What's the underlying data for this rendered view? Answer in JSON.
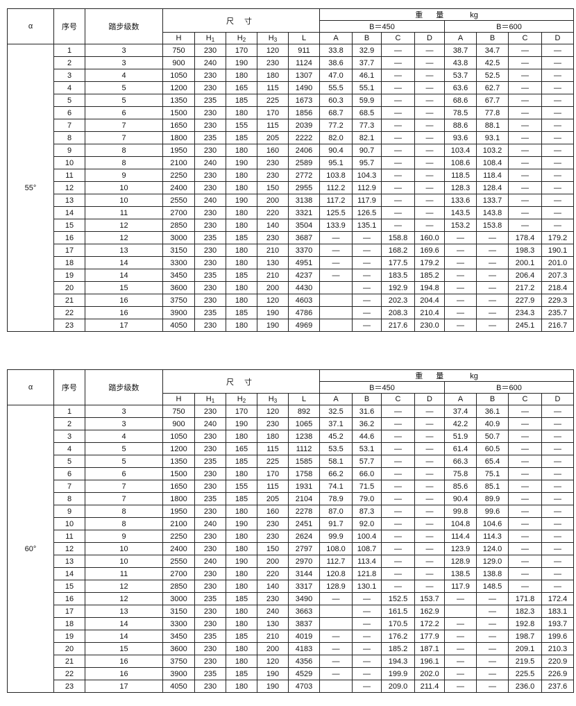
{
  "headers": {
    "alpha": "α",
    "no": "序号",
    "steps": "踏步级数",
    "dimensions": "尺 寸",
    "weight": "重 量",
    "weight_unit": "kg",
    "dim_cols": [
      {
        "base": "H",
        "sub": ""
      },
      {
        "base": "H",
        "sub": "1"
      },
      {
        "base": "H",
        "sub": "2"
      },
      {
        "base": "H",
        "sub": "3"
      },
      {
        "base": "L",
        "sub": ""
      }
    ],
    "group_450": "B＝450",
    "group_600": "B＝600",
    "type_cols": [
      "A",
      "B",
      "C",
      "D"
    ]
  },
  "tables": [
    {
      "angle": "55°",
      "rows": [
        [
          "1",
          "3",
          "750",
          "230",
          "170",
          "120",
          "911",
          "33.8",
          "32.9",
          "—",
          "—",
          "38.7",
          "34.7",
          "—",
          "—"
        ],
        [
          "2",
          "3",
          "900",
          "240",
          "190",
          "230",
          "1124",
          "38.6",
          "37.7",
          "—",
          "—",
          "43.8",
          "42.5",
          "—",
          "—"
        ],
        [
          "3",
          "4",
          "1050",
          "230",
          "180",
          "180",
          "1307",
          "47.0",
          "46.1",
          "—",
          "—",
          "53.7",
          "52.5",
          "—",
          "—"
        ],
        [
          "4",
          "5",
          "1200",
          "230",
          "165",
          "115",
          "1490",
          "55.5",
          "55.1",
          "—",
          "—",
          "63.6",
          "62.7",
          "—",
          "—"
        ],
        [
          "5",
          "5",
          "1350",
          "235",
          "185",
          "225",
          "1673",
          "60.3",
          "59.9",
          "—",
          "—",
          "68.6",
          "67.7",
          "—",
          "—"
        ],
        [
          "6",
          "6",
          "1500",
          "230",
          "180",
          "170",
          "1856",
          "68.7",
          "68.5",
          "—",
          "—",
          "78.5",
          "77.8",
          "—",
          "—"
        ],
        [
          "7",
          "7",
          "1650",
          "230",
          "155",
          "115",
          "2039",
          "77.2",
          "77.3",
          "—",
          "—",
          "88.6",
          "88.1",
          "—",
          "—"
        ],
        [
          "8",
          "7",
          "1800",
          "235",
          "185",
          "205",
          "2222",
          "82.0",
          "82.1",
          "—",
          "—",
          "93.6",
          "93.1",
          "—",
          "—"
        ],
        [
          "9",
          "8",
          "1950",
          "230",
          "180",
          "160",
          "2406",
          "90.4",
          "90.7",
          "—",
          "—",
          "103.4",
          "103.2",
          "—",
          "—"
        ],
        [
          "10",
          "8",
          "2100",
          "240",
          "190",
          "230",
          "2589",
          "95.1",
          "95.7",
          "—",
          "—",
          "108.6",
          "108.4",
          "—",
          "—"
        ],
        [
          "11",
          "9",
          "2250",
          "230",
          "180",
          "230",
          "2772",
          "103.8",
          "104.3",
          "—",
          "—",
          "118.5",
          "118.4",
          "—",
          "—"
        ],
        [
          "12",
          "10",
          "2400",
          "230",
          "180",
          "150",
          "2955",
          "112.2",
          "112.9",
          "—",
          "—",
          "128.3",
          "128.4",
          "—",
          "—"
        ],
        [
          "13",
          "10",
          "2550",
          "240",
          "190",
          "200",
          "3138",
          "117.2",
          "117.9",
          "—",
          "—",
          "133.6",
          "133.7",
          "—",
          "—"
        ],
        [
          "14",
          "11",
          "2700",
          "230",
          "180",
          "220",
          "3321",
          "125.5",
          "126.5",
          "—",
          "—",
          "143.5",
          "143.8",
          "—",
          "—"
        ],
        [
          "15",
          "12",
          "2850",
          "230",
          "180",
          "140",
          "3504",
          "133.9",
          "135.1",
          "—",
          "—",
          "153.2",
          "153.8",
          "—",
          "—"
        ],
        [
          "16",
          "12",
          "3000",
          "235",
          "185",
          "230",
          "3687",
          "—",
          "—",
          "158.8",
          "160.0",
          "—",
          "—",
          "178.4",
          "179.2"
        ],
        [
          "17",
          "13",
          "3150",
          "230",
          "180",
          "210",
          "3370",
          "—",
          "—",
          "168.2",
          "169.6",
          "—",
          "—",
          "198.3",
          "190.1"
        ],
        [
          "18",
          "14",
          "3300",
          "230",
          "180",
          "130",
          "4951",
          "—",
          "—",
          "177.5",
          "179.2",
          "—",
          "—",
          "200.1",
          "201.0"
        ],
        [
          "19",
          "14",
          "3450",
          "235",
          "185",
          "210",
          "4237",
          "—",
          "—",
          "183.5",
          "185.2",
          "—",
          "—",
          "206.4",
          "207.3"
        ],
        [
          "20",
          "15",
          "3600",
          "230",
          "180",
          "200",
          "4430",
          "",
          "—",
          "192.9",
          "194.8",
          "—",
          "—",
          "217.2",
          "218.4"
        ],
        [
          "21",
          "16",
          "3750",
          "230",
          "180",
          "120",
          "4603",
          "",
          "—",
          "202.3",
          "204.4",
          "—",
          "—",
          "227.9",
          "229.3"
        ],
        [
          "22",
          "16",
          "3900",
          "235",
          "185",
          "190",
          "4786",
          "",
          "—",
          "208.3",
          "210.4",
          "—",
          "—",
          "234.3",
          "235.7"
        ],
        [
          "23",
          "17",
          "4050",
          "230",
          "180",
          "190",
          "4969",
          "",
          "—",
          "217.6",
          "230.0",
          "—",
          "—",
          "245.1",
          "216.7"
        ]
      ]
    },
    {
      "angle": "60°",
      "rows": [
        [
          "1",
          "3",
          "750",
          "230",
          "170",
          "120",
          "892",
          "32.5",
          "31.6",
          "—",
          "—",
          "37.4",
          "36.1",
          "—",
          "—"
        ],
        [
          "2",
          "3",
          "900",
          "240",
          "190",
          "230",
          "1065",
          "37.1",
          "36.2",
          "—",
          "—",
          "42.2",
          "40.9",
          "—",
          "—"
        ],
        [
          "3",
          "4",
          "1050",
          "230",
          "180",
          "180",
          "1238",
          "45.2",
          "44.6",
          "—",
          "—",
          "51.9",
          "50.7",
          "—",
          "—"
        ],
        [
          "4",
          "5",
          "1200",
          "230",
          "165",
          "115",
          "1112",
          "53.5",
          "53.1",
          "—",
          "—",
          "61.4",
          "60.5",
          "—",
          "—"
        ],
        [
          "5",
          "5",
          "1350",
          "235",
          "185",
          "225",
          "1585",
          "58.1",
          "57.7",
          "—",
          "—",
          "66.3",
          "65.4",
          "—",
          "—"
        ],
        [
          "6",
          "6",
          "1500",
          "230",
          "180",
          "170",
          "1758",
          "66.2",
          "66.0",
          "—",
          "—",
          "75.8",
          "75.1",
          "—",
          "—"
        ],
        [
          "7",
          "7",
          "1650",
          "230",
          "155",
          "115",
          "1931",
          "74.1",
          "71.5",
          "—",
          "—",
          "85.6",
          "85.1",
          "—",
          "—"
        ],
        [
          "8",
          "7",
          "1800",
          "235",
          "185",
          "205",
          "2104",
          "78.9",
          "79.0",
          "—",
          "—",
          "90.4",
          "89.9",
          "—",
          "—"
        ],
        [
          "9",
          "8",
          "1950",
          "230",
          "180",
          "160",
          "2278",
          "87.0",
          "87.3",
          "—",
          "—",
          "99.8",
          "99.6",
          "—",
          "—"
        ],
        [
          "10",
          "8",
          "2100",
          "240",
          "190",
          "230",
          "2451",
          "91.7",
          "92.0",
          "—",
          "—",
          "104.8",
          "104.6",
          "—",
          "—"
        ],
        [
          "11",
          "9",
          "2250",
          "230",
          "180",
          "230",
          "2624",
          "99.9",
          "100.4",
          "—",
          "—",
          "114.4",
          "114.3",
          "—",
          "—"
        ],
        [
          "12",
          "10",
          "2400",
          "230",
          "180",
          "150",
          "2797",
          "108.0",
          "108.7",
          "—",
          "—",
          "123.9",
          "124.0",
          "—",
          "—"
        ],
        [
          "13",
          "10",
          "2550",
          "240",
          "190",
          "200",
          "2970",
          "112.7",
          "113.4",
          "—",
          "—",
          "128.9",
          "129.0",
          "—",
          "—"
        ],
        [
          "14",
          "11",
          "2700",
          "230",
          "180",
          "220",
          "3144",
          "120.8",
          "121.8",
          "—",
          "—",
          "138.5",
          "138.8",
          "—",
          "—"
        ],
        [
          "15",
          "12",
          "2850",
          "230",
          "180",
          "140",
          "3317",
          "128.9",
          "130.1",
          "—",
          "—",
          "117.9",
          "148.5",
          "—",
          "—"
        ],
        [
          "16",
          "12",
          "3000",
          "235",
          "185",
          "230",
          "3490",
          "—",
          "—",
          "152.5",
          "153.7",
          "—",
          "—",
          "171.8",
          "172.4"
        ],
        [
          "17",
          "13",
          "3150",
          "230",
          "180",
          "240",
          "3663",
          "",
          "—",
          "161.5",
          "162.9",
          "",
          "—",
          "182.3",
          "183.1"
        ],
        [
          "18",
          "14",
          "3300",
          "230",
          "180",
          "130",
          "3837",
          "",
          "—",
          "170.5",
          "172.2",
          "—",
          "—",
          "192.8",
          "193.7"
        ],
        [
          "19",
          "14",
          "3450",
          "235",
          "185",
          "210",
          "4019",
          "—",
          "—",
          "176.2",
          "177.9",
          "—",
          "—",
          "198.7",
          "199.6"
        ],
        [
          "20",
          "15",
          "3600",
          "230",
          "180",
          "200",
          "4183",
          "—",
          "—",
          "185.2",
          "187.1",
          "—",
          "—",
          "209.1",
          "210.3"
        ],
        [
          "21",
          "16",
          "3750",
          "230",
          "180",
          "120",
          "4356",
          "—",
          "—",
          "194.3",
          "196.1",
          "—",
          "—",
          "219.5",
          "220.9"
        ],
        [
          "22",
          "16",
          "3900",
          "235",
          "185",
          "190",
          "4529",
          "—",
          "—",
          "199.9",
          "202.0",
          "—",
          "—",
          "225.5",
          "226.9"
        ],
        [
          "23",
          "17",
          "4050",
          "230",
          "180",
          "190",
          "4703",
          "",
          "—",
          "209.0",
          "211.4",
          "—",
          "—",
          "236.0",
          "237.6"
        ]
      ]
    }
  ]
}
